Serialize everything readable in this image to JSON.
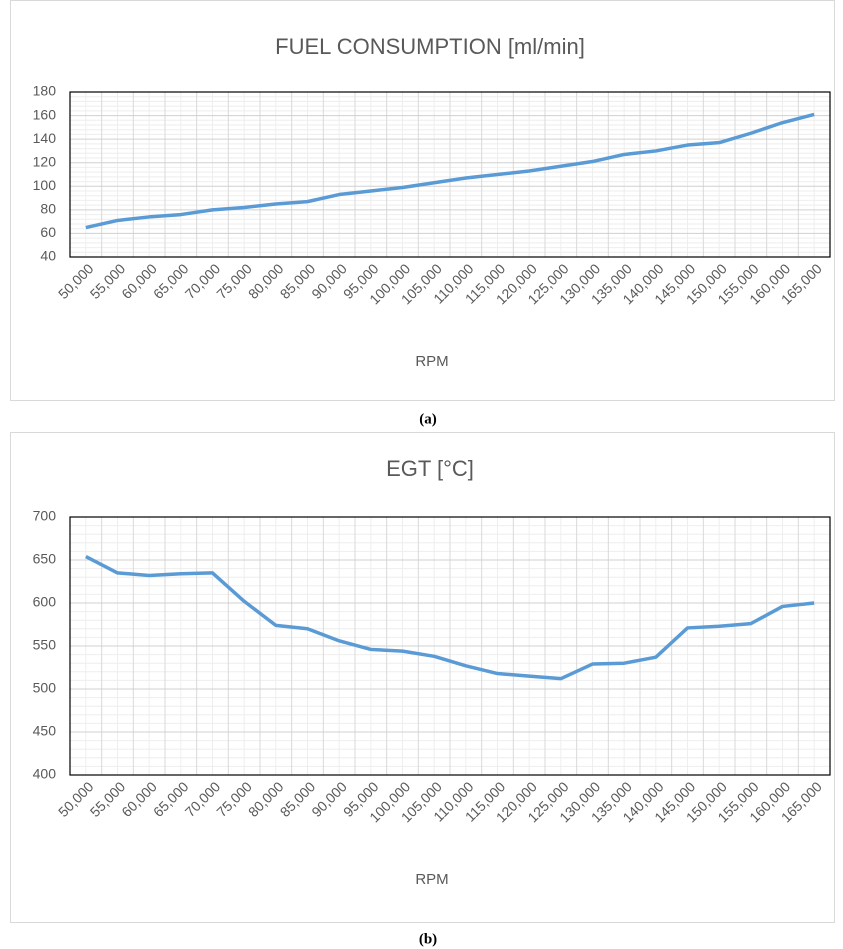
{
  "chart_data": [
    {
      "type": "line",
      "title": "FUEL CONSUMPTION [ml/min]",
      "x_label": "RPM",
      "caption": "(a)",
      "categories": [
        "50,000",
        "55,000",
        "60,000",
        "65,000",
        "70,000",
        "75,000",
        "80,000",
        "85,000",
        "90,000",
        "95,000",
        "100,000",
        "105,000",
        "110,000",
        "115,000",
        "120,000",
        "125,000",
        "130,000",
        "135,000",
        "140,000",
        "145,000",
        "150,000",
        "155,000",
        "160,000",
        "165,000"
      ],
      "values": [
        65,
        71,
        74,
        76,
        80,
        82,
        85,
        87,
        93,
        96,
        99,
        103,
        107,
        110,
        113,
        117,
        121,
        127,
        130,
        135,
        137,
        145,
        154,
        161
      ],
      "color": "#5b9bd5",
      "ylim": [
        40,
        180
      ],
      "yticks": [
        40,
        60,
        80,
        100,
        120,
        140,
        160,
        180
      ],
      "grid": true
    },
    {
      "type": "line",
      "title": "EGT  [°C]",
      "x_label": "RPM",
      "caption": "(b)",
      "categories": [
        "50,000",
        "55,000",
        "60,000",
        "65,000",
        "70,000",
        "75,000",
        "80,000",
        "85,000",
        "90,000",
        "95,000",
        "100,000",
        "105,000",
        "110,000",
        "115,000",
        "120,000",
        "125,000",
        "130,000",
        "135,000",
        "140,000",
        "145,000",
        "150,000",
        "155,000",
        "160,000",
        "165,000"
      ],
      "values": [
        654,
        635,
        632,
        634,
        635,
        602,
        574,
        570,
        556,
        546,
        544,
        538,
        527,
        518,
        515,
        512,
        529,
        530,
        537,
        571,
        573,
        576,
        596,
        600
      ],
      "color": "#5b9bd5",
      "ylim": [
        400,
        700
      ],
      "yticks": [
        400,
        450,
        500,
        550,
        600,
        650,
        700
      ],
      "grid": true
    }
  ]
}
